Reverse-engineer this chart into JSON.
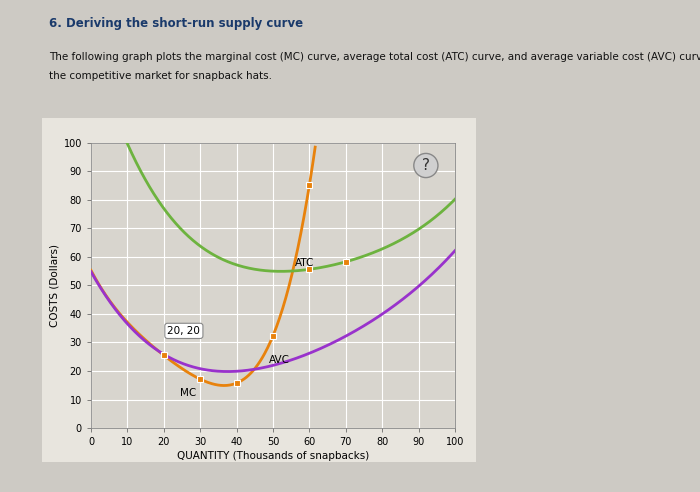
{
  "title": "6. Deriving the short-run supply curve",
  "desc_line1": "The following graph plots the marginal cost (MC) curve, average total cost (ATC) curve, and average variable cost (AVC) curve for a firm operating in",
  "desc_line2": "the competitive market for snapback hats.",
  "xlabel": "QUANTITY (Thousands of snapbacks)",
  "ylabel": "COSTS (Dollars)",
  "xlim": [
    0,
    100
  ],
  "ylim": [
    0,
    100
  ],
  "xticks": [
    0,
    10,
    20,
    30,
    40,
    50,
    60,
    70,
    80,
    90,
    100
  ],
  "yticks": [
    0,
    10,
    20,
    30,
    40,
    50,
    60,
    70,
    80,
    90,
    100
  ],
  "mc_color": "#E8820C",
  "atc_color": "#6DB33F",
  "avc_color": "#9932CC",
  "marker_color": "#E8820C",
  "annotation_label": "20, 20",
  "mc_label": "MC",
  "atc_label": "ATC",
  "avc_label": "AVC",
  "fig_bg": "#CDCAC4",
  "plot_bg": "#D8D5CE",
  "panel_bg": "#E8E5DE"
}
